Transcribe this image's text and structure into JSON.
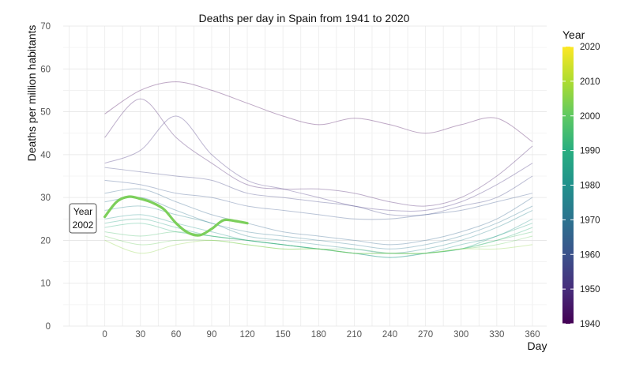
{
  "chart_data": {
    "type": "line",
    "title": "Deaths per day in Spain from 1941 to 2020",
    "xlabel": "Day",
    "ylabel": "Deaths per million habitants",
    "xlim": [
      -35,
      372
    ],
    "ylim": [
      0,
      70
    ],
    "x_ticks": [
      0,
      30,
      60,
      90,
      120,
      150,
      180,
      210,
      240,
      270,
      300,
      330,
      360
    ],
    "y_ticks": [
      0,
      10,
      20,
      30,
      40,
      50,
      60,
      70
    ],
    "grid": true,
    "legend": {
      "title": "Year",
      "position": "right",
      "type": "colorbar",
      "range": [
        1940,
        2020
      ],
      "ticks": [
        1940,
        1950,
        1960,
        1970,
        1980,
        1990,
        2000,
        2010,
        2020
      ]
    },
    "highlight": {
      "year": 2002,
      "label_line1": "Year",
      "label_line2": "2002",
      "color": "#7ccf5b",
      "x": [
        0,
        10,
        20,
        30,
        40,
        50,
        60,
        70,
        80,
        90,
        100,
        110,
        120
      ],
      "y": [
        25.5,
        29.0,
        30.2,
        29.7,
        28.8,
        27.2,
        24.0,
        21.8,
        21.2,
        22.7,
        24.7,
        24.5,
        24.0
      ]
    },
    "background_series": [
      {
        "name": "1941",
        "x": [
          0,
          30,
          60,
          90,
          120,
          150,
          180,
          210,
          240,
          270,
          300,
          330,
          360
        ],
        "y": [
          49.5,
          55,
          57,
          55,
          52,
          49,
          47,
          48.5,
          47,
          45,
          47,
          48.5,
          43
        ]
      },
      {
        "name": "1946",
        "x": [
          0,
          30,
          60,
          90,
          120,
          150,
          180,
          210,
          240,
          270,
          300,
          330,
          360
        ],
        "y": [
          44,
          53,
          44,
          38,
          33,
          32,
          32,
          31,
          29,
          28,
          30,
          35,
          42
        ]
      },
      {
        "name": "1951",
        "x": [
          0,
          30,
          60,
          90,
          120,
          150,
          180,
          210,
          240,
          270,
          300,
          330,
          360
        ],
        "y": [
          38,
          41,
          49,
          40,
          34,
          32,
          30,
          28,
          27,
          27,
          29,
          33,
          38
        ]
      },
      {
        "name": "1956",
        "x": [
          0,
          30,
          60,
          90,
          120,
          150,
          180,
          210,
          240,
          270,
          300,
          330,
          360
        ],
        "y": [
          37,
          36,
          35,
          34,
          31,
          30,
          29,
          28,
          26,
          26,
          28,
          30,
          35
        ]
      },
      {
        "name": "1961",
        "x": [
          0,
          30,
          60,
          90,
          120,
          150,
          180,
          210,
          240,
          270,
          300,
          330,
          360
        ],
        "y": [
          34,
          33,
          31,
          30,
          28,
          27,
          26,
          25,
          25,
          26,
          27,
          29,
          31
        ]
      },
      {
        "name": "1966",
        "x": [
          0,
          30,
          60,
          90,
          120,
          150,
          180,
          210,
          240,
          270,
          300,
          330,
          360
        ],
        "y": [
          31,
          32,
          29,
          26,
          24,
          22,
          21,
          20,
          19,
          20,
          22,
          25,
          30
        ]
      },
      {
        "name": "1971",
        "x": [
          0,
          30,
          60,
          90,
          120,
          150,
          180,
          210,
          240,
          270,
          300,
          330,
          360
        ],
        "y": [
          29,
          30,
          27,
          24,
          22,
          21,
          20,
          19,
          18,
          19,
          21,
          24,
          28
        ]
      },
      {
        "name": "1976",
        "x": [
          0,
          30,
          60,
          90,
          120,
          150,
          180,
          210,
          240,
          270,
          300,
          330,
          360
        ],
        "y": [
          27,
          28,
          26,
          24,
          21,
          20,
          19,
          18,
          17,
          18,
          20,
          23,
          27
        ]
      },
      {
        "name": "1981",
        "x": [
          0,
          30,
          60,
          90,
          120,
          150,
          180,
          210,
          240,
          270,
          300,
          330,
          360
        ],
        "y": [
          25,
          26,
          24,
          22,
          20,
          19,
          18,
          17,
          16,
          17,
          19,
          21,
          25
        ]
      },
      {
        "name": "1986",
        "x": [
          0,
          30,
          60,
          90,
          120,
          150,
          180,
          210,
          240,
          270,
          300,
          330,
          360
        ],
        "y": [
          24,
          25,
          23,
          21,
          20,
          19,
          18,
          17,
          16,
          17,
          18,
          21,
          24
        ]
      },
      {
        "name": "1991",
        "x": [
          0,
          30,
          60,
          90,
          120,
          150,
          180,
          210,
          240,
          270,
          300,
          330,
          360
        ],
        "y": [
          23,
          24,
          22,
          21,
          20,
          19,
          18,
          17,
          17,
          17,
          18,
          20,
          23
        ]
      },
      {
        "name": "1996",
        "x": [
          0,
          30,
          60,
          90,
          120,
          150,
          180,
          210,
          240,
          270,
          300,
          330,
          360
        ],
        "y": [
          22,
          21,
          22,
          21,
          20,
          19,
          18,
          18,
          17,
          17,
          18,
          20,
          22
        ]
      },
      {
        "name": "2001",
        "x": [
          0,
          30,
          60,
          90,
          120,
          150,
          180,
          210,
          240,
          270,
          300,
          330,
          360
        ],
        "y": [
          21,
          19,
          20,
          20,
          19,
          18,
          18,
          17,
          17,
          17,
          18,
          19,
          21
        ]
      },
      {
        "name": "2006",
        "x": [
          0,
          30,
          60,
          90,
          120,
          150,
          180,
          210,
          240,
          270,
          300,
          330,
          360
        ],
        "y": [
          20,
          17,
          19,
          20,
          19,
          18,
          18,
          17,
          17,
          17,
          18,
          18,
          19
        ]
      }
    ]
  }
}
